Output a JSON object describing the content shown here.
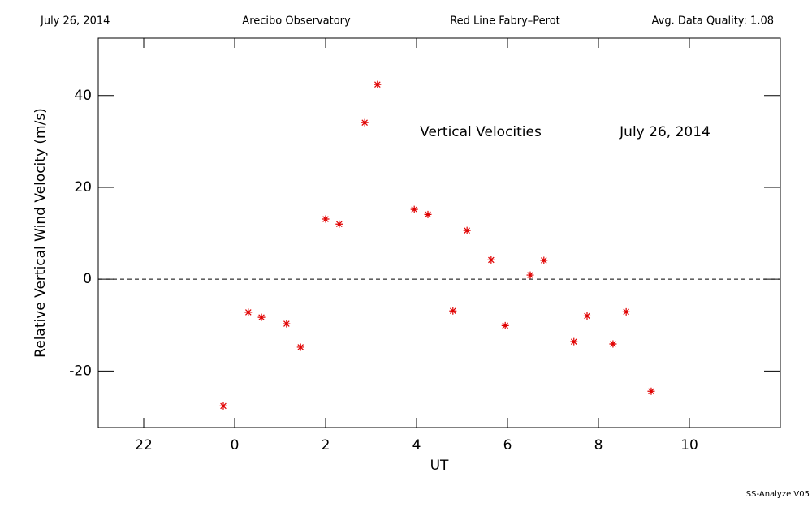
{
  "chart_data": {
    "type": "scatter",
    "header": [
      "July 26, 2014",
      "Arecibo Observatory",
      "Red Line Fabry–Perot",
      "Avg. Data Quality: 1.08"
    ],
    "annotations": [
      "Vertical Velocities",
      "July 26, 2014"
    ],
    "footer": "SS-Analyze V05",
    "xlabel": "UT",
    "ylabel": "Relative Vertical Wind Velocity (m/s)",
    "marker": "*",
    "color": "#e00000",
    "x": [
      -0.25,
      0.3,
      0.59,
      1.14,
      1.45,
      2.0,
      2.3,
      2.86,
      3.14,
      3.95,
      4.25,
      4.8,
      5.11,
      5.64,
      5.95,
      6.5,
      6.8,
      7.46,
      7.75,
      8.32,
      8.61,
      9.16
    ],
    "values": [
      -27.6,
      -7.2,
      -8.3,
      -9.7,
      -14.8,
      13.1,
      12.0,
      34.1,
      42.4,
      15.2,
      14.1,
      -6.9,
      10.6,
      4.2,
      -10.1,
      0.9,
      4.1,
      -13.6,
      -8.0,
      -14.1,
      -7.1,
      -24.4
    ],
    "xlim": [
      -3,
      12
    ],
    "xticks": [
      {
        "value": -2,
        "label": "22"
      },
      0,
      2,
      4,
      6,
      8,
      10
    ],
    "ylim": [
      -32.3,
      52.5
    ],
    "yticks": [
      -20,
      0,
      20,
      40
    ]
  }
}
